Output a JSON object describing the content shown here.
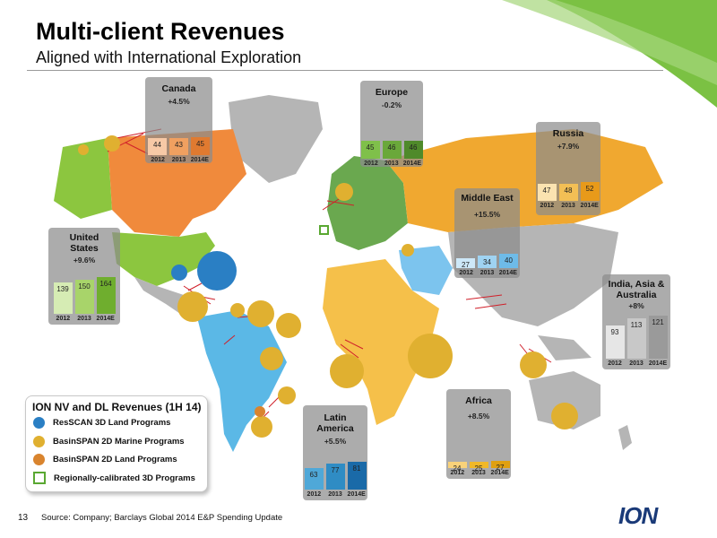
{
  "slide": {
    "title": "Multi-client Revenues",
    "subtitle": "Aligned with International Exploration",
    "page_number": "13",
    "source": "Source:  Company; Barclays Global 2014 E&P Spending Update",
    "logo": "ION"
  },
  "legend": {
    "title": "ION NV and DL Revenues (1H 14)",
    "items": [
      {
        "label": "ResSCAN 3D Land Programs",
        "icon": "blue-ball-icon",
        "color": "#2a7fc4"
      },
      {
        "label": "BasinSPAN 2D Marine Programs",
        "icon": "gold-ball-icon",
        "color": "#e0b030"
      },
      {
        "label": "BasinSPAN 2D Land Programs",
        "icon": "orange-ball-icon",
        "color": "#d9842e"
      },
      {
        "label": "Regionally-calibrated 3D Programs",
        "icon": "green-square-icon",
        "color": "#5aa832"
      }
    ]
  },
  "colors": {
    "canada": "#f08a3c",
    "us": "#8cc63f",
    "latin_america": "#5bb8e6",
    "europe": "#6aa84f",
    "russia": "#f0a830",
    "middle_east": "#7cc4ee",
    "africa": "#f5c04a",
    "asia": "#b5b5b5",
    "swoosh": "#7bc143"
  },
  "chart_data": [
    {
      "type": "bar",
      "region": "Canada",
      "growth": "+4.5%",
      "categories": [
        "2012",
        "2013",
        "2014E"
      ],
      "values": [
        44,
        43,
        45
      ],
      "bar_colors": [
        "#f7c9a6",
        "#f0a060",
        "#e07a30"
      ]
    },
    {
      "type": "bar",
      "region": "Europe",
      "growth": "-0.2%",
      "categories": [
        "2012",
        "2013",
        "2014E"
      ],
      "values": [
        45,
        46,
        46
      ],
      "bar_colors": [
        "#7fc04a",
        "#6aa83a",
        "#4f8a2a"
      ]
    },
    {
      "type": "bar",
      "region": "Russia",
      "growth": "+7.9%",
      "categories": [
        "2012",
        "2013",
        "2014E"
      ],
      "values": [
        47,
        48,
        52
      ],
      "bar_colors": [
        "#fbe3b0",
        "#f3bf55",
        "#e89a1a"
      ]
    },
    {
      "type": "bar",
      "region": "Middle East",
      "growth": "+15.5%",
      "categories": [
        "2012",
        "2013",
        "2014E"
      ],
      "values": [
        27,
        34,
        40
      ],
      "bar_colors": [
        "#cde8f8",
        "#9fd3f2",
        "#6ebbe8"
      ]
    },
    {
      "type": "bar",
      "region": "United States",
      "growth": "+9.6%",
      "categories": [
        "2012",
        "2013",
        "2014E"
      ],
      "values": [
        139,
        150,
        164
      ],
      "bar_colors": [
        "#d6ecb4",
        "#a8d46a",
        "#6fae2e"
      ]
    },
    {
      "type": "bar",
      "region": "India, Asia & Australia",
      "growth": "+8%",
      "categories": [
        "2012",
        "2013",
        "2014E"
      ],
      "values": [
        93,
        113,
        121
      ],
      "bar_colors": [
        "#e6e6e6",
        "#c8c8c8",
        "#9a9a9a"
      ]
    },
    {
      "type": "bar",
      "region": "Latin America",
      "growth": "+5.5%",
      "categories": [
        "2012",
        "2013",
        "2014E"
      ],
      "values": [
        63,
        77,
        81
      ],
      "bar_colors": [
        "#4fa8d8",
        "#2f8cc4",
        "#1a6aa8"
      ]
    },
    {
      "type": "bar",
      "region": "Africa",
      "growth": "+8.5%",
      "categories": [
        "2012",
        "2013",
        "2014E"
      ],
      "values": [
        24,
        25,
        27
      ],
      "bar_colors": [
        "#f9d27a",
        "#f0b828",
        "#e0a010"
      ]
    }
  ]
}
